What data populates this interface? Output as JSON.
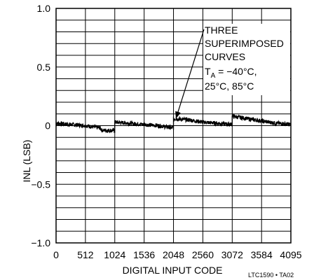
{
  "chart_data": {
    "type": "line",
    "xlabel": "DIGITAL INPUT CODE",
    "ylabel": "INL (LSB)",
    "xlim": [
      0,
      4095
    ],
    "ylim": [
      -1.0,
      1.0
    ],
    "x_ticks": [
      0,
      512,
      1024,
      1536,
      2048,
      2560,
      3072,
      3584,
      4095
    ],
    "x_tick_labels": [
      "0",
      "512",
      "1024",
      "1536",
      "2048",
      "2560",
      "3072",
      "3584",
      "4095"
    ],
    "y_tick_labels": [
      {
        "value": 1.0,
        "label": "1.0"
      },
      {
        "value": 0.5,
        "label": "0.5"
      },
      {
        "value": 0,
        "label": "0"
      },
      {
        "value": -0.5,
        "label": "−0.5"
      },
      {
        "value": -1.0,
        "label": "−1.0"
      }
    ],
    "grid": true,
    "gridlines_y_step": 0.1,
    "annotation": {
      "lines": [
        "THREE",
        "SUPERIMPOSED",
        "CURVES"
      ],
      "temp_prefix": "T",
      "temp_subscript": "A",
      "temp_line": " = −40°C,",
      "temp_line2": "25°C, 85°C",
      "arrow_target_x": 2090,
      "arrow_target_y": 0.06
    },
    "series": [
      {
        "x": [
          0,
          256,
          512,
          768,
          800,
          1023,
          1024,
          1280,
          1536,
          1792,
          2047,
          2048,
          2304,
          2560,
          2816,
          3071,
          3072,
          3328,
          3584,
          3840,
          4095
        ],
        "y": [
          0.02,
          0.01,
          0.0,
          -0.02,
          -0.04,
          -0.04,
          0.03,
          0.02,
          0.01,
          0.0,
          -0.02,
          0.06,
          0.05,
          0.03,
          0.02,
          0.01,
          0.08,
          0.06,
          0.04,
          0.02,
          0.01
        ]
      }
    ],
    "color": "#000000"
  },
  "footer": {
    "code": "LTC1590 • TA02"
  }
}
